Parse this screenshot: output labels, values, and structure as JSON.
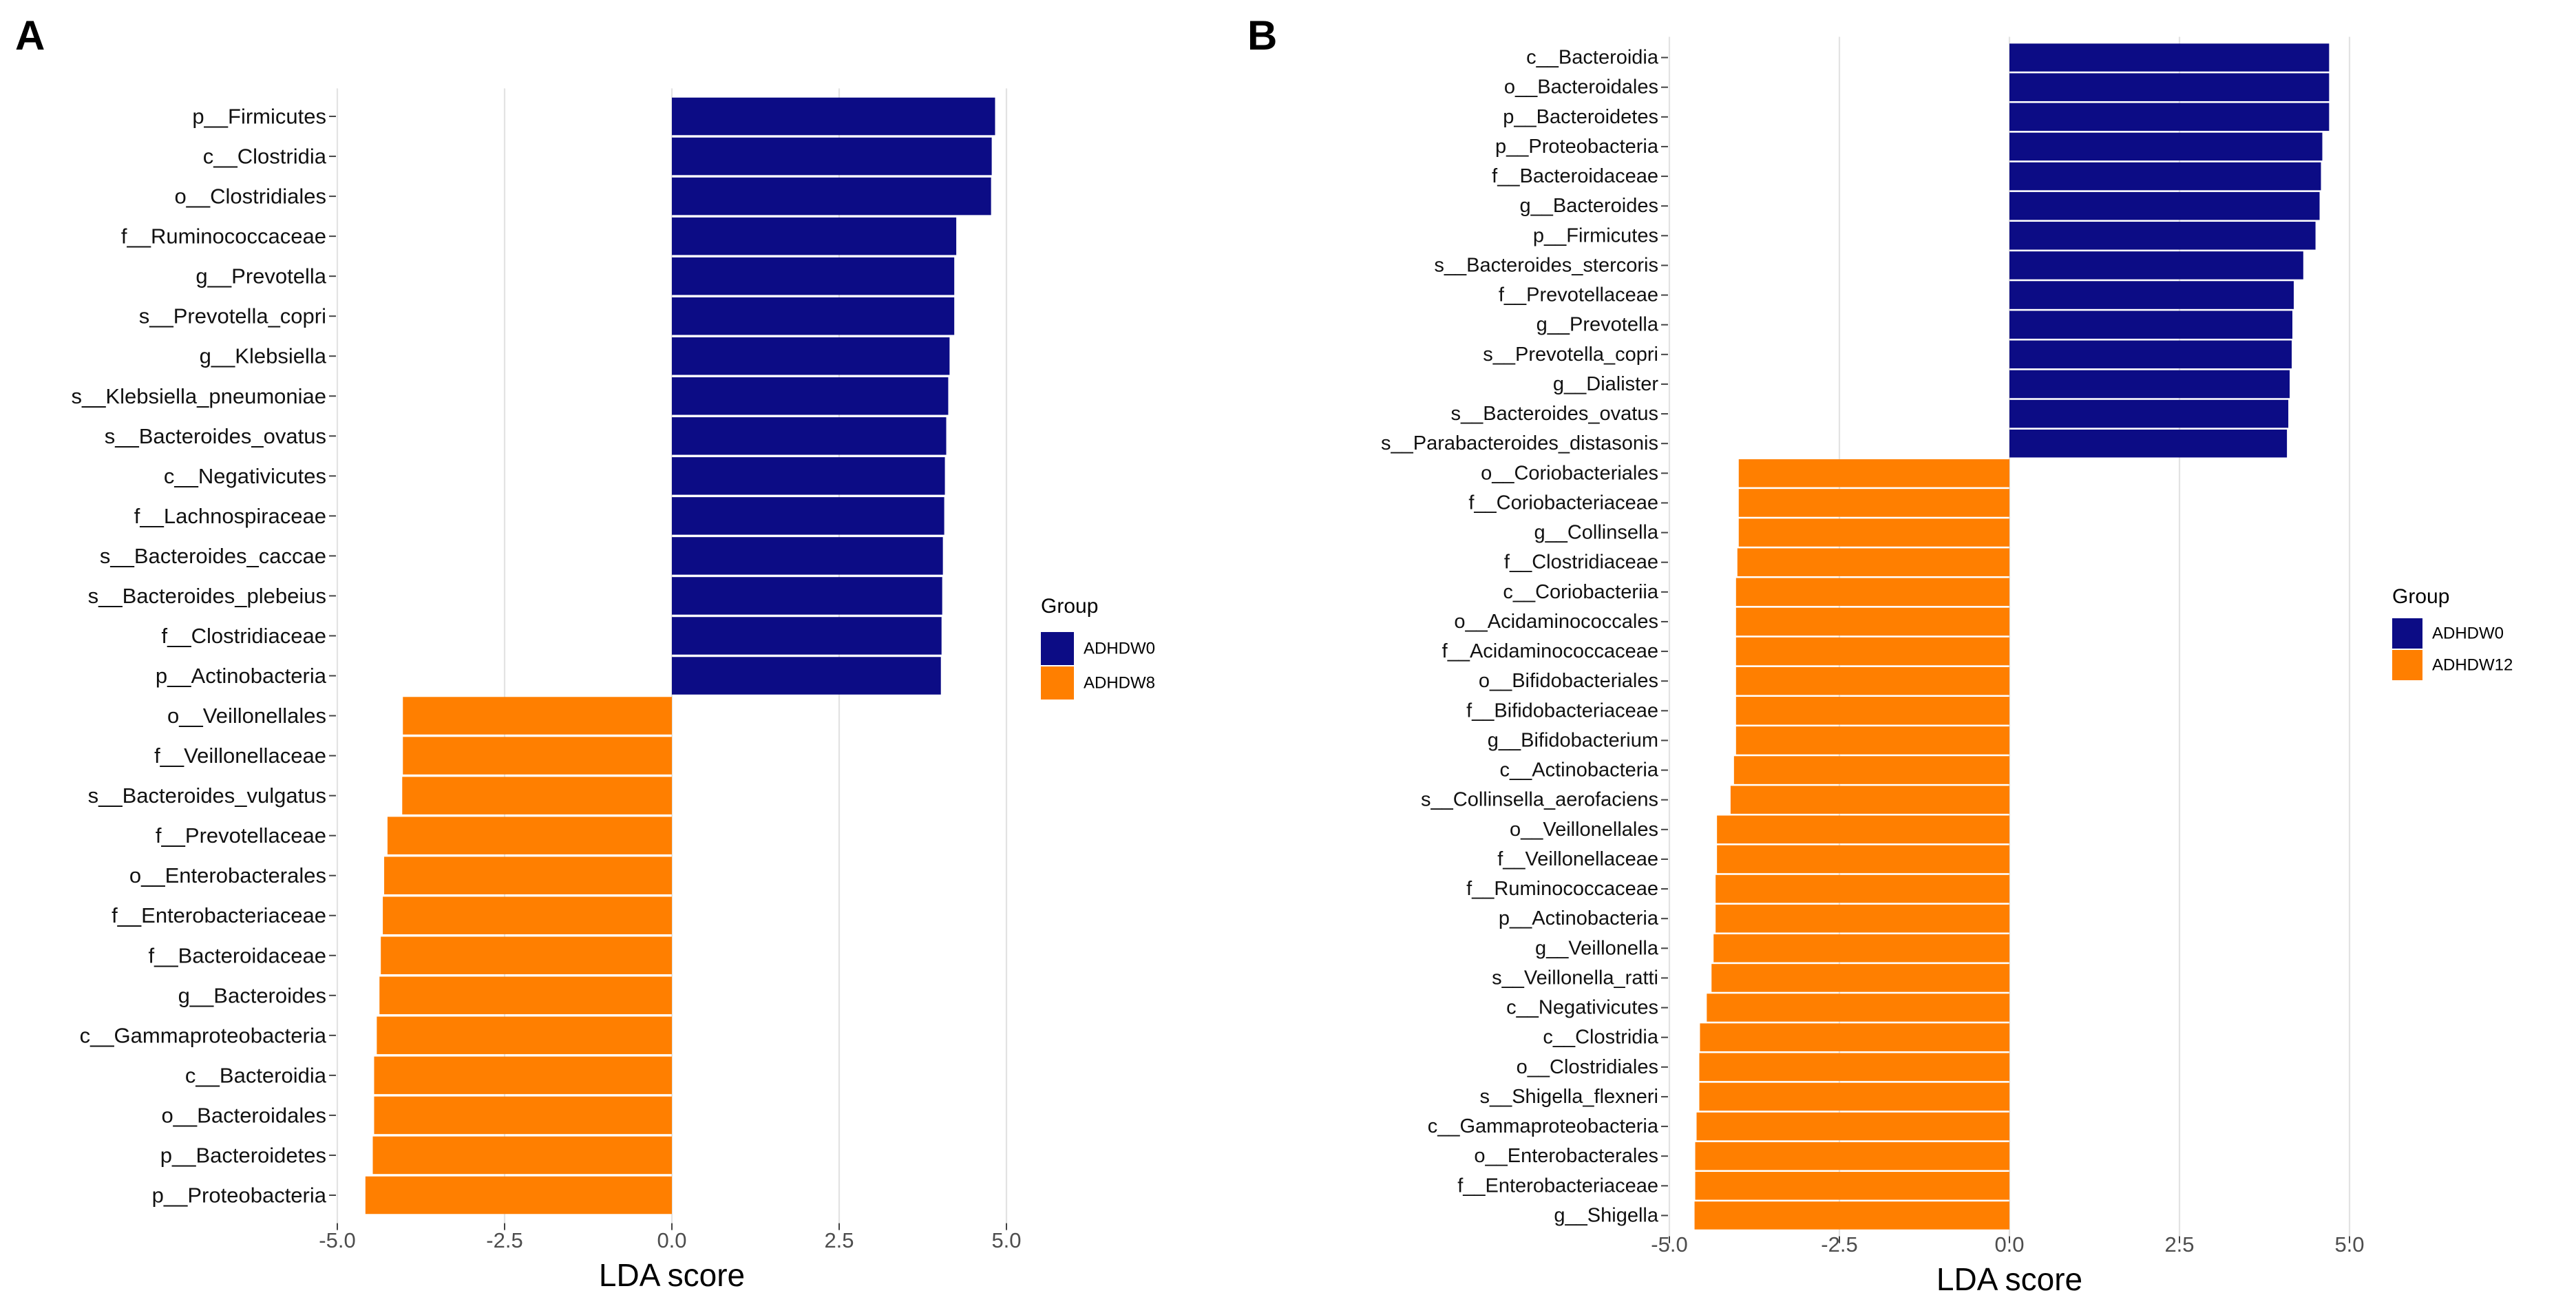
{
  "colors": {
    "group0": "#0c0c85",
    "group1": "#ff7f00",
    "grid": "#e3e3e3",
    "text": "#000000",
    "tick": "#444444"
  },
  "chart_data": [
    {
      "panel_label": "A",
      "type": "bar",
      "orientation": "horizontal",
      "xlabel": "LDA score",
      "xlim": [
        -5,
        5
      ],
      "xticks": [
        -5,
        -2.5,
        0,
        2.5,
        5
      ],
      "xtick_labels": [
        "-5.0",
        "-2.5",
        "0.0",
        "2.5",
        "5.0"
      ],
      "grid": true,
      "legend_title": "Group",
      "legend_position": "right",
      "series": [
        {
          "name": "ADHDW0",
          "color_key": "group0"
        },
        {
          "name": "ADHDW8",
          "color_key": "group1"
        }
      ],
      "categories": [
        "p__Firmicutes",
        "c__Clostridia",
        "o__Clostridiales",
        "f__Ruminococcaceae",
        "g__Prevotella",
        "s__Prevotella_copri",
        "g__Klebsiella",
        "s__Klebsiella_pneumoniae",
        "s__Bacteroides_ovatus",
        "c__Negativicutes",
        "f__Lachnospiraceae",
        "s__Bacteroides_caccae",
        "s__Bacteroides_plebeius",
        "f__Clostridiaceae",
        "p__Actinobacteria",
        "o__Veillonellales",
        "f__Veillonellaceae",
        "s__Bacteroides_vulgatus",
        "f__Prevotellaceae",
        "o__Enterobacterales",
        "f__Enterobacteriaceae",
        "f__Bacteroidaceae",
        "g__Bacteroides",
        "c__Gammaproteobacteria",
        "c__Bacteroidia",
        "o__Bacteroidales",
        "p__Bacteroidetes",
        "p__Proteobacteria"
      ],
      "values": [
        4.83,
        4.78,
        4.77,
        4.25,
        4.22,
        4.22,
        4.15,
        4.13,
        4.1,
        4.08,
        4.07,
        4.05,
        4.04,
        4.03,
        4.02,
        -4.02,
        -4.02,
        -4.03,
        -4.25,
        -4.3,
        -4.32,
        -4.35,
        -4.37,
        -4.41,
        -4.45,
        -4.45,
        -4.47,
        -4.58
      ],
      "groups": [
        "ADHDW0",
        "ADHDW0",
        "ADHDW0",
        "ADHDW0",
        "ADHDW0",
        "ADHDW0",
        "ADHDW0",
        "ADHDW0",
        "ADHDW0",
        "ADHDW0",
        "ADHDW0",
        "ADHDW0",
        "ADHDW0",
        "ADHDW0",
        "ADHDW0",
        "ADHDW8",
        "ADHDW8",
        "ADHDW8",
        "ADHDW8",
        "ADHDW8",
        "ADHDW8",
        "ADHDW8",
        "ADHDW8",
        "ADHDW8",
        "ADHDW8",
        "ADHDW8",
        "ADHDW8",
        "ADHDW8"
      ]
    },
    {
      "panel_label": "B",
      "type": "bar",
      "orientation": "horizontal",
      "xlabel": "LDA score",
      "xlim": [
        -5,
        5
      ],
      "xticks": [
        -5,
        -2.5,
        0,
        2.5,
        5
      ],
      "xtick_labels": [
        "-5.0",
        "-2.5",
        "0.0",
        "2.5",
        "5.0"
      ],
      "grid": true,
      "legend_title": "Group",
      "legend_position": "right",
      "series": [
        {
          "name": "ADHDW0",
          "color_key": "group0"
        },
        {
          "name": "ADHDW12",
          "color_key": "group1"
        }
      ],
      "categories": [
        "c__Bacteroidia",
        "o__Bacteroidales",
        "p__Bacteroidetes",
        "p__Proteobacteria",
        "f__Bacteroidaceae",
        "g__Bacteroides",
        "p__Firmicutes",
        "s__Bacteroides_stercoris",
        "f__Prevotellaceae",
        "g__Prevotella",
        "s__Prevotella_copri",
        "g__Dialister",
        "s__Bacteroides_ovatus",
        "s__Parabacteroides_distasonis",
        "o__Coriobacteriales",
        "f__Coriobacteriaceae",
        "g__Collinsella",
        "f__Clostridiaceae",
        "c__Coriobacteriia",
        "o__Acidaminococcales",
        "f__Acidaminococcaceae",
        "o__Bifidobacteriales",
        "f__Bifidobacteriaceae",
        "g__Bifidobacterium",
        "c__Actinobacteria",
        "s__Collinsella_aerofaciens",
        "o__Veillonellales",
        "f__Veillonellaceae",
        "f__Ruminococcaceae",
        "p__Actinobacteria",
        "g__Veillonella",
        "s__Veillonella_ratti",
        "c__Negativicutes",
        "c__Clostridia",
        "o__Clostridiales",
        "s__Shigella_flexneri",
        "c__Gammaproteobacteria",
        "o__Enterobacterales",
        "f__Enterobacteriaceae",
        "g__Shigella"
      ],
      "values": [
        4.7,
        4.7,
        4.7,
        4.6,
        4.58,
        4.56,
        4.5,
        4.32,
        4.18,
        4.16,
        4.15,
        4.12,
        4.1,
        4.08,
        -3.98,
        -3.98,
        -3.98,
        -4.0,
        -4.02,
        -4.02,
        -4.02,
        -4.02,
        -4.02,
        -4.02,
        -4.05,
        -4.1,
        -4.3,
        -4.3,
        -4.32,
        -4.32,
        -4.35,
        -4.38,
        -4.45,
        -4.55,
        -4.56,
        -4.56,
        -4.6,
        -4.62,
        -4.62,
        -4.63
      ],
      "groups": [
        "ADHDW0",
        "ADHDW0",
        "ADHDW0",
        "ADHDW0",
        "ADHDW0",
        "ADHDW0",
        "ADHDW0",
        "ADHDW0",
        "ADHDW0",
        "ADHDW0",
        "ADHDW0",
        "ADHDW0",
        "ADHDW0",
        "ADHDW0",
        "ADHDW12",
        "ADHDW12",
        "ADHDW12",
        "ADHDW12",
        "ADHDW12",
        "ADHDW12",
        "ADHDW12",
        "ADHDW12",
        "ADHDW12",
        "ADHDW12",
        "ADHDW12",
        "ADHDW12",
        "ADHDW12",
        "ADHDW12",
        "ADHDW12",
        "ADHDW12",
        "ADHDW12",
        "ADHDW12",
        "ADHDW12",
        "ADHDW12",
        "ADHDW12",
        "ADHDW12",
        "ADHDW12",
        "ADHDW12",
        "ADHDW12",
        "ADHDW12"
      ]
    }
  ]
}
